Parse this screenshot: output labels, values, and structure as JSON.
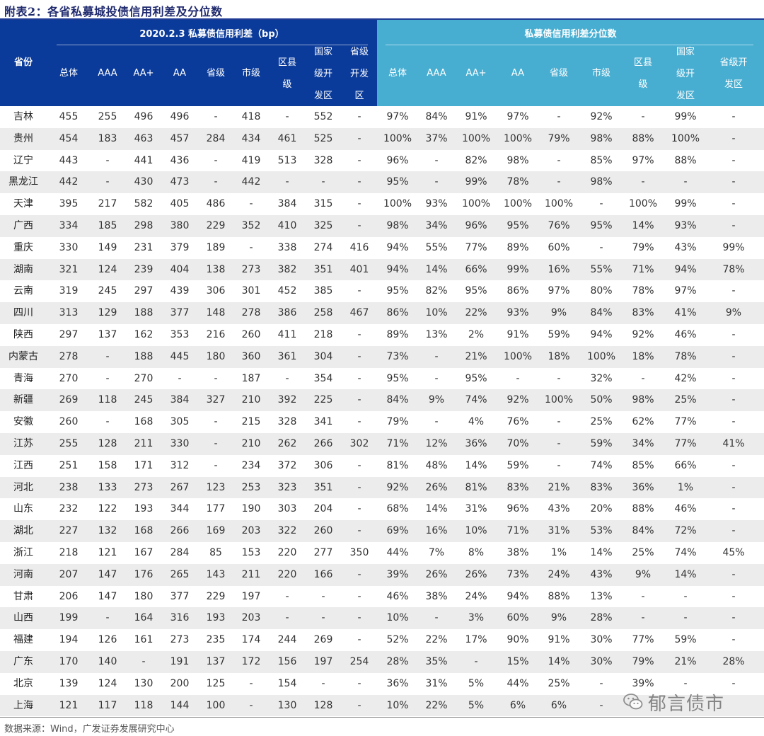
{
  "title": "附表2：各省私募城投债信用利差及分位数",
  "header": {
    "province_label": "省份",
    "group_left": "2020.2.3 私募债信用利差（bp）",
    "group_right": "私募债信用利差分位数",
    "columns_left": [
      "总体",
      "AAA",
      "AA+",
      "AA",
      "省级",
      "市级",
      [
        "区县",
        "级"
      ],
      [
        "国家",
        "级开",
        "发区"
      ],
      [
        "省级",
        "开发",
        "区"
      ]
    ],
    "columns_right": [
      "总体",
      "AAA",
      "AA+",
      "AA",
      "省级",
      "市级",
      [
        "区县",
        "级"
      ],
      [
        "国家",
        "级开",
        "发区"
      ],
      [
        "省级开",
        "发区"
      ]
    ]
  },
  "rows": [
    [
      "吉林",
      "455",
      "255",
      "496",
      "496",
      "-",
      "418",
      "-",
      "552",
      "-",
      "97%",
      "84%",
      "91%",
      "97%",
      "-",
      "92%",
      "-",
      "99%",
      "-"
    ],
    [
      "贵州",
      "454",
      "183",
      "463",
      "457",
      "284",
      "434",
      "461",
      "525",
      "-",
      "100%",
      "37%",
      "100%",
      "100%",
      "79%",
      "98%",
      "88%",
      "100%",
      "-"
    ],
    [
      "辽宁",
      "443",
      "-",
      "441",
      "436",
      "-",
      "419",
      "513",
      "328",
      "-",
      "96%",
      "-",
      "82%",
      "98%",
      "-",
      "85%",
      "97%",
      "88%",
      "-"
    ],
    [
      "黑龙江",
      "442",
      "-",
      "430",
      "473",
      "-",
      "442",
      "-",
      "-",
      "-",
      "95%",
      "-",
      "99%",
      "78%",
      "-",
      "98%",
      "-",
      "-",
      "-"
    ],
    [
      "天津",
      "395",
      "217",
      "582",
      "405",
      "486",
      "-",
      "384",
      "315",
      "-",
      "100%",
      "93%",
      "100%",
      "100%",
      "100%",
      "-",
      "100%",
      "99%",
      "-"
    ],
    [
      "广西",
      "334",
      "185",
      "298",
      "380",
      "229",
      "352",
      "410",
      "325",
      "-",
      "98%",
      "34%",
      "96%",
      "95%",
      "76%",
      "95%",
      "14%",
      "93%",
      "-"
    ],
    [
      "重庆",
      "330",
      "149",
      "231",
      "379",
      "189",
      "-",
      "338",
      "274",
      "416",
      "94%",
      "55%",
      "77%",
      "89%",
      "60%",
      "-",
      "79%",
      "43%",
      "99%"
    ],
    [
      "湖南",
      "321",
      "124",
      "239",
      "404",
      "138",
      "273",
      "382",
      "351",
      "401",
      "94%",
      "14%",
      "66%",
      "99%",
      "16%",
      "55%",
      "71%",
      "94%",
      "78%"
    ],
    [
      "云南",
      "319",
      "245",
      "297",
      "439",
      "306",
      "301",
      "452",
      "385",
      "-",
      "95%",
      "82%",
      "95%",
      "86%",
      "97%",
      "80%",
      "78%",
      "97%",
      "-"
    ],
    [
      "四川",
      "313",
      "129",
      "188",
      "377",
      "148",
      "278",
      "386",
      "258",
      "467",
      "86%",
      "10%",
      "22%",
      "93%",
      "9%",
      "84%",
      "83%",
      "41%",
      "9%"
    ],
    [
      "陕西",
      "297",
      "137",
      "162",
      "353",
      "216",
      "260",
      "411",
      "218",
      "-",
      "89%",
      "13%",
      "2%",
      "91%",
      "59%",
      "94%",
      "92%",
      "46%",
      "-"
    ],
    [
      "内蒙古",
      "278",
      "-",
      "188",
      "445",
      "180",
      "360",
      "361",
      "304",
      "-",
      "73%",
      "-",
      "21%",
      "100%",
      "18%",
      "100%",
      "18%",
      "78%",
      "-"
    ],
    [
      "青海",
      "270",
      "-",
      "270",
      "-",
      "-",
      "187",
      "-",
      "354",
      "-",
      "95%",
      "-",
      "95%",
      "-",
      "-",
      "32%",
      "-",
      "42%",
      "-"
    ],
    [
      "新疆",
      "269",
      "118",
      "245",
      "384",
      "327",
      "210",
      "392",
      "225",
      "-",
      "84%",
      "9%",
      "74%",
      "92%",
      "100%",
      "50%",
      "98%",
      "25%",
      "-"
    ],
    [
      "安徽",
      "260",
      "-",
      "168",
      "305",
      "-",
      "215",
      "328",
      "341",
      "-",
      "79%",
      "-",
      "4%",
      "76%",
      "-",
      "25%",
      "62%",
      "77%",
      "-"
    ],
    [
      "江苏",
      "255",
      "128",
      "211",
      "330",
      "-",
      "210",
      "262",
      "266",
      "302",
      "71%",
      "12%",
      "36%",
      "70%",
      "-",
      "59%",
      "34%",
      "77%",
      "41%"
    ],
    [
      "江西",
      "251",
      "158",
      "171",
      "312",
      "-",
      "234",
      "372",
      "306",
      "-",
      "81%",
      "48%",
      "14%",
      "59%",
      "-",
      "74%",
      "85%",
      "66%",
      "-"
    ],
    [
      "河北",
      "238",
      "133",
      "273",
      "267",
      "123",
      "253",
      "323",
      "351",
      "-",
      "92%",
      "26%",
      "81%",
      "83%",
      "21%",
      "83%",
      "36%",
      "1%",
      "-"
    ],
    [
      "山东",
      "232",
      "122",
      "193",
      "344",
      "177",
      "190",
      "303",
      "204",
      "-",
      "68%",
      "14%",
      "31%",
      "96%",
      "43%",
      "20%",
      "88%",
      "46%",
      "-"
    ],
    [
      "湖北",
      "227",
      "132",
      "168",
      "266",
      "169",
      "203",
      "322",
      "260",
      "-",
      "69%",
      "16%",
      "10%",
      "71%",
      "31%",
      "53%",
      "84%",
      "72%",
      "-"
    ],
    [
      "浙江",
      "218",
      "121",
      "167",
      "284",
      "85",
      "153",
      "220",
      "277",
      "350",
      "44%",
      "7%",
      "8%",
      "38%",
      "1%",
      "14%",
      "25%",
      "74%",
      "45%"
    ],
    [
      "河南",
      "207",
      "147",
      "176",
      "265",
      "143",
      "211",
      "220",
      "166",
      "-",
      "39%",
      "26%",
      "26%",
      "73%",
      "24%",
      "43%",
      "9%",
      "14%",
      "-"
    ],
    [
      "甘肃",
      "206",
      "147",
      "180",
      "377",
      "229",
      "197",
      "-",
      "-",
      "-",
      "46%",
      "38%",
      "24%",
      "94%",
      "88%",
      "13%",
      "-",
      "-",
      "-"
    ],
    [
      "山西",
      "199",
      "-",
      "164",
      "316",
      "193",
      "203",
      "-",
      "-",
      "-",
      "10%",
      "-",
      "3%",
      "60%",
      "9%",
      "28%",
      "-",
      "-",
      "-"
    ],
    [
      "福建",
      "194",
      "126",
      "161",
      "273",
      "235",
      "174",
      "244",
      "269",
      "-",
      "52%",
      "22%",
      "17%",
      "90%",
      "91%",
      "30%",
      "77%",
      "59%",
      "-"
    ],
    [
      "广东",
      "170",
      "140",
      "-",
      "191",
      "137",
      "172",
      "156",
      "197",
      "254",
      "28%",
      "35%",
      "-",
      "15%",
      "14%",
      "30%",
      "79%",
      "21%",
      "28%"
    ],
    [
      "北京",
      "139",
      "124",
      "130",
      "200",
      "125",
      "-",
      "154",
      "-",
      "-",
      "36%",
      "31%",
      "5%",
      "44%",
      "25%",
      "-",
      "39%",
      "-",
      "-"
    ],
    [
      "上海",
      "121",
      "117",
      "118",
      "144",
      "100",
      "-",
      "130",
      "128",
      "-",
      "10%",
      "22%",
      "5%",
      "6%",
      "6%",
      "-",
      "",
      "",
      ""
    ]
  ],
  "footer": {
    "source": "数据来源：Wind，广发证券发展研究中心"
  },
  "watermark": {
    "text": "郁言债市",
    "icon": "wechat-icon"
  }
}
